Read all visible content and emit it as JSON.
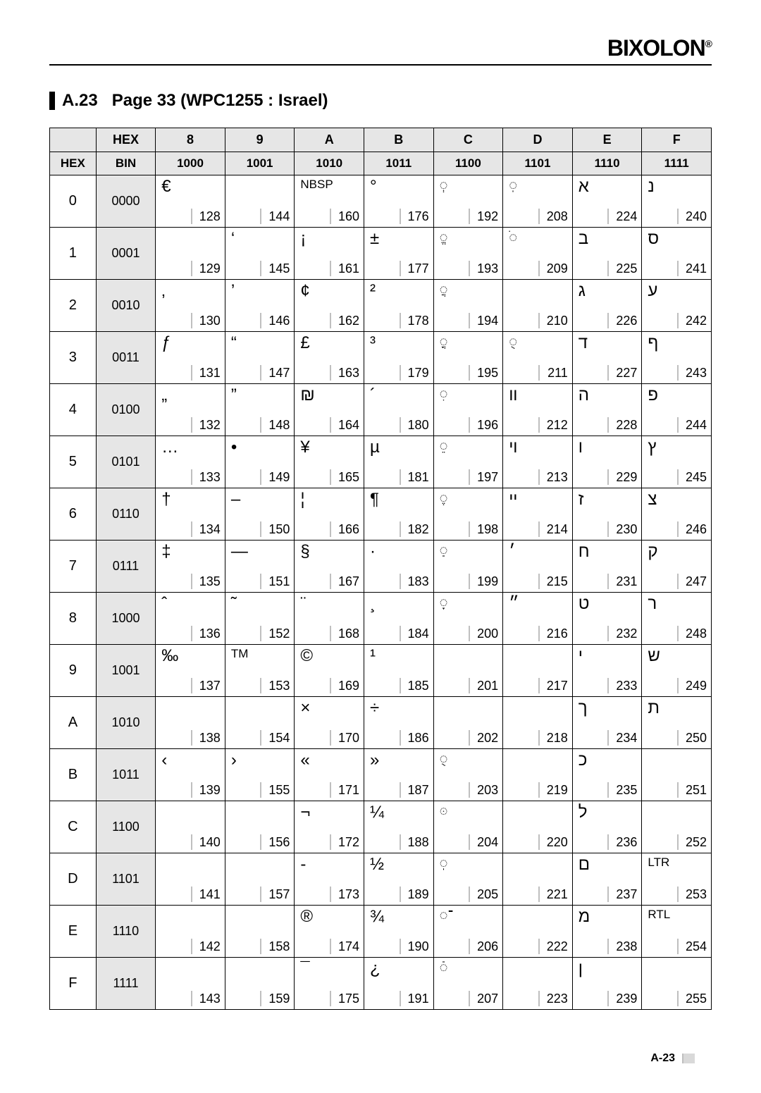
{
  "brand": "BIXOLON",
  "brand_mark": "®",
  "section_code": "A.23",
  "section_title": "Page 33 (WPC1255 : Israel)",
  "footer_page": "A-23",
  "header_corner": "HEX",
  "header_side_hex": "HEX",
  "header_side_bin": "BIN",
  "cols": [
    {
      "hex": "8",
      "bin": "1000"
    },
    {
      "hex": "9",
      "bin": "1001"
    },
    {
      "hex": "A",
      "bin": "1010"
    },
    {
      "hex": "B",
      "bin": "1011"
    },
    {
      "hex": "C",
      "bin": "1100"
    },
    {
      "hex": "D",
      "bin": "1101"
    },
    {
      "hex": "E",
      "bin": "1110"
    },
    {
      "hex": "F",
      "bin": "1111"
    }
  ],
  "rows": [
    {
      "hex": "0",
      "bin": "0000",
      "cells": [
        {
          "glyph": "€",
          "dec": 128
        },
        {
          "glyph": "",
          "dec": 144
        },
        {
          "glyph": "NBSP",
          "dec": 160,
          "small": true
        },
        {
          "glyph": "°",
          "dec": 176
        },
        {
          "glyph": "ְ",
          "dec": 192
        },
        {
          "glyph": "ֽ",
          "dec": 208
        },
        {
          "glyph": "א",
          "dec": 224
        },
        {
          "glyph": "נ",
          "dec": 240
        }
      ]
    },
    {
      "hex": "1",
      "bin": "0001",
      "cells": [
        {
          "glyph": "",
          "dec": 129
        },
        {
          "glyph": "‘",
          "dec": 145
        },
        {
          "glyph": "¡",
          "dec": 161
        },
        {
          "glyph": "±",
          "dec": 177
        },
        {
          "glyph": "ֱ",
          "dec": 193
        },
        {
          "glyph": "ֹ",
          "dec": 209
        },
        {
          "glyph": "ב",
          "dec": 225
        },
        {
          "glyph": "ס",
          "dec": 241
        }
      ]
    },
    {
      "hex": "2",
      "bin": "0010",
      "cells": [
        {
          "glyph": "‚",
          "dec": 130
        },
        {
          "glyph": "’",
          "dec": 146
        },
        {
          "glyph": "¢",
          "dec": 162
        },
        {
          "glyph": "²",
          "dec": 178
        },
        {
          "glyph": "ֲ",
          "dec": 194
        },
        {
          "glyph": "",
          "dec": 210
        },
        {
          "glyph": "ג",
          "dec": 226
        },
        {
          "glyph": "ע",
          "dec": 242
        }
      ]
    },
    {
      "hex": "3",
      "bin": "0011",
      "cells": [
        {
          "glyph": "ƒ",
          "dec": 131
        },
        {
          "glyph": "“",
          "dec": 147
        },
        {
          "glyph": "£",
          "dec": 163
        },
        {
          "glyph": "³",
          "dec": 179
        },
        {
          "glyph": "ֳ",
          "dec": 195
        },
        {
          "glyph": "ֻ",
          "dec": 211
        },
        {
          "glyph": "ד",
          "dec": 227
        },
        {
          "glyph": "ף",
          "dec": 243
        }
      ]
    },
    {
      "hex": "4",
      "bin": "0100",
      "cells": [
        {
          "glyph": "„",
          "dec": 132
        },
        {
          "glyph": "”",
          "dec": 148
        },
        {
          "glyph": "₪",
          "dec": 164
        },
        {
          "glyph": "´",
          "dec": 180
        },
        {
          "glyph": "ִ",
          "dec": 196
        },
        {
          "glyph": "װ",
          "dec": 212
        },
        {
          "glyph": "ה",
          "dec": 228
        },
        {
          "glyph": "פ",
          "dec": 244
        }
      ]
    },
    {
      "hex": "5",
      "bin": "0101",
      "cells": [
        {
          "glyph": "…",
          "dec": 133
        },
        {
          "glyph": "•",
          "dec": 149
        },
        {
          "glyph": "¥",
          "dec": 165
        },
        {
          "glyph": "µ",
          "dec": 181
        },
        {
          "glyph": "ֵ",
          "dec": 197
        },
        {
          "glyph": "ױ",
          "dec": 213
        },
        {
          "glyph": "ו",
          "dec": 229
        },
        {
          "glyph": "ץ",
          "dec": 245
        }
      ]
    },
    {
      "hex": "6",
      "bin": "0110",
      "cells": [
        {
          "glyph": "†",
          "dec": 134
        },
        {
          "glyph": "–",
          "dec": 150
        },
        {
          "glyph": "¦",
          "dec": 166
        },
        {
          "glyph": "¶",
          "dec": 182
        },
        {
          "glyph": "ֶ",
          "dec": 198
        },
        {
          "glyph": "ײ",
          "dec": 214
        },
        {
          "glyph": "ז",
          "dec": 230
        },
        {
          "glyph": "צ",
          "dec": 246
        }
      ]
    },
    {
      "hex": "7",
      "bin": "0111",
      "cells": [
        {
          "glyph": "‡",
          "dec": 135
        },
        {
          "glyph": "—",
          "dec": 151
        },
        {
          "glyph": "§",
          "dec": 167
        },
        {
          "glyph": "·",
          "dec": 183
        },
        {
          "glyph": "ַ",
          "dec": 199
        },
        {
          "glyph": "׳",
          "dec": 215
        },
        {
          "glyph": "ח",
          "dec": 231
        },
        {
          "glyph": "ק",
          "dec": 247
        }
      ]
    },
    {
      "hex": "8",
      "bin": "1000",
      "cells": [
        {
          "glyph": "ˆ",
          "dec": 136
        },
        {
          "glyph": "˜",
          "dec": 152
        },
        {
          "glyph": "¨",
          "dec": 168
        },
        {
          "glyph": "¸",
          "dec": 184
        },
        {
          "glyph": "ָ",
          "dec": 200
        },
        {
          "glyph": "״",
          "dec": 216
        },
        {
          "glyph": "ט",
          "dec": 232
        },
        {
          "glyph": "ר",
          "dec": 248
        }
      ]
    },
    {
      "hex": "9",
      "bin": "1001",
      "cells": [
        {
          "glyph": "‰",
          "dec": 137
        },
        {
          "glyph": "TM",
          "dec": 153,
          "small": true
        },
        {
          "glyph": "©",
          "dec": 169
        },
        {
          "glyph": "¹",
          "dec": 185
        },
        {
          "glyph": "",
          "dec": 201
        },
        {
          "glyph": "",
          "dec": 217
        },
        {
          "glyph": "י",
          "dec": 233
        },
        {
          "glyph": "ש",
          "dec": 249
        }
      ]
    },
    {
      "hex": "A",
      "bin": "1010",
      "cells": [
        {
          "glyph": "",
          "dec": 138
        },
        {
          "glyph": "",
          "dec": 154
        },
        {
          "glyph": "×",
          "dec": 170
        },
        {
          "glyph": "÷",
          "dec": 186
        },
        {
          "glyph": "",
          "dec": 202
        },
        {
          "glyph": "",
          "dec": 218
        },
        {
          "glyph": "ך",
          "dec": 234
        },
        {
          "glyph": "ת",
          "dec": 250
        }
      ]
    },
    {
      "hex": "B",
      "bin": "1011",
      "cells": [
        {
          "glyph": "‹",
          "dec": 139
        },
        {
          "glyph": "›",
          "dec": 155
        },
        {
          "glyph": "«",
          "dec": 171
        },
        {
          "glyph": "»",
          "dec": 187
        },
        {
          "glyph": "ֻ",
          "dec": 203
        },
        {
          "glyph": "",
          "dec": 219
        },
        {
          "glyph": "כ",
          "dec": 235
        },
        {
          "glyph": "",
          "dec": 251
        }
      ]
    },
    {
      "hex": "C",
      "bin": "1100",
      "cells": [
        {
          "glyph": "",
          "dec": 140
        },
        {
          "glyph": "",
          "dec": 156
        },
        {
          "glyph": "¬",
          "dec": 172
        },
        {
          "glyph": "¼",
          "dec": 188
        },
        {
          "glyph": "ּ",
          "dec": 204
        },
        {
          "glyph": "",
          "dec": 220
        },
        {
          "glyph": "ל",
          "dec": 236
        },
        {
          "glyph": "",
          "dec": 252
        }
      ]
    },
    {
      "hex": "D",
      "bin": "1101",
      "cells": [
        {
          "glyph": "",
          "dec": 141
        },
        {
          "glyph": "",
          "dec": 157
        },
        {
          "glyph": "-",
          "dec": 173
        },
        {
          "glyph": "½",
          "dec": 189
        },
        {
          "glyph": "ֽ",
          "dec": 205
        },
        {
          "glyph": "",
          "dec": 221
        },
        {
          "glyph": "ם",
          "dec": 237
        },
        {
          "glyph": "LTR",
          "dec": 253,
          "small": true
        }
      ]
    },
    {
      "hex": "E",
      "bin": "1110",
      "cells": [
        {
          "glyph": "",
          "dec": 142
        },
        {
          "glyph": "",
          "dec": 158
        },
        {
          "glyph": "®",
          "dec": 174
        },
        {
          "glyph": "¾",
          "dec": 190
        },
        {
          "glyph": "־",
          "dec": 206
        },
        {
          "glyph": "",
          "dec": 222
        },
        {
          "glyph": "מ",
          "dec": 238
        },
        {
          "glyph": "RTL",
          "dec": 254,
          "small": true
        }
      ]
    },
    {
      "hex": "F",
      "bin": "1111",
      "cells": [
        {
          "glyph": "",
          "dec": 143
        },
        {
          "glyph": "",
          "dec": 159
        },
        {
          "glyph": "¯",
          "dec": 175
        },
        {
          "glyph": "¿",
          "dec": 191
        },
        {
          "glyph": "ֿ",
          "dec": 207
        },
        {
          "glyph": "",
          "dec": 223
        },
        {
          "glyph": "ן",
          "dec": 239
        },
        {
          "glyph": "",
          "dec": 255
        }
      ]
    }
  ]
}
